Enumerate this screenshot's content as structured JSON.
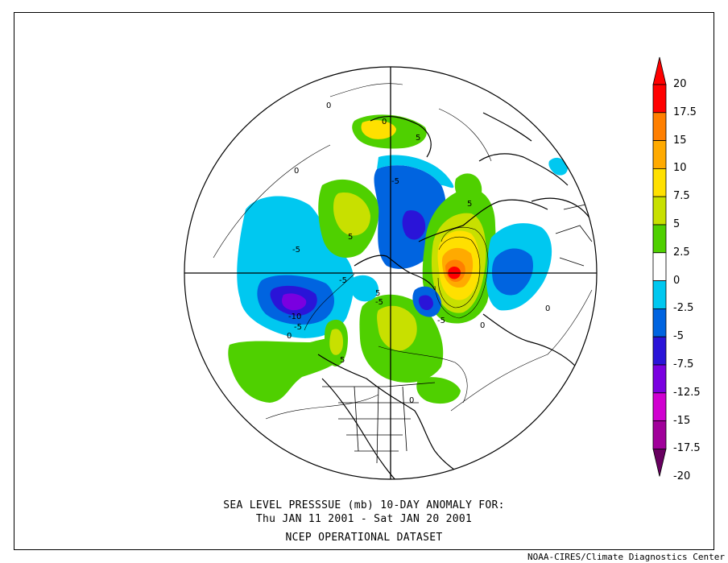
{
  "title": {
    "line1": "SEA LEVEL PRESSSUE (mb)   10-DAY ANOMALY FOR:",
    "line2": "Thu JAN 11 2001 - Sat JAN 20 2001",
    "line3": "NCEP OPERATIONAL DATASET"
  },
  "credit": "NOAA-CIRES/Climate Diagnostics Center",
  "colorbar": {
    "labels": [
      "20",
      "17.5",
      "15",
      "10",
      "7.5",
      "5",
      "2.5",
      "0",
      "-2.5",
      "-5",
      "-7.5",
      "-12.5",
      "-15",
      "-17.5",
      "-20"
    ],
    "colors": [
      "#ff0000",
      "#ff7f00",
      "#ffaa00",
      "#ffe000",
      "#c8e000",
      "#4fd000",
      "#ffffff",
      "#00c8f0",
      "#0064e0",
      "#2a14d8",
      "#7a00e0",
      "#d000d0",
      "#a0009a",
      "#680060"
    ]
  },
  "contour_labels": [
    "0",
    "0",
    "0",
    "-5",
    "5",
    "5",
    "5",
    "-5",
    "-5",
    "-5",
    "-10",
    "-5",
    "0",
    "5",
    "-5",
    "0",
    "0",
    "0",
    "5"
  ],
  "projection": "north-polar-stereographic"
}
